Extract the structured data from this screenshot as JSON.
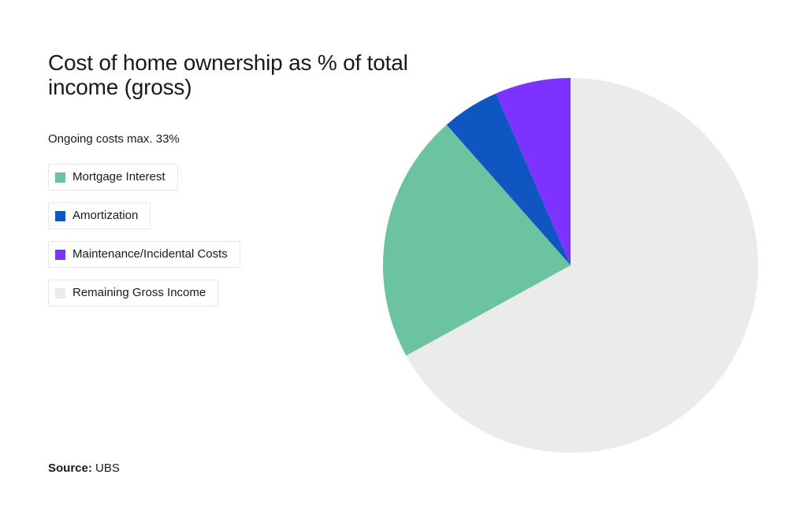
{
  "chart_data": {
    "type": "pie",
    "title": "Cost of home ownership as % of total income (gross)",
    "subtitle": "Ongoing costs max. 33%",
    "slices": [
      {
        "label": "Maintenance/Incidental Costs",
        "value": 6.5,
        "color": "#7e32ff"
      },
      {
        "label": "Amortization",
        "value": 5.0,
        "color": "#0f56c3"
      },
      {
        "label": "Mortgage Interest",
        "value": 21.5,
        "color": "#6bc49f"
      },
      {
        "label": "Remaining Gross Income",
        "value": 67.0,
        "color": "#ebebeb"
      }
    ],
    "legend_order": [
      "Mortgage Interest",
      "Amortization",
      "Maintenance/Incidental Costs",
      "Remaining Gross Income"
    ],
    "legend_placement": "left",
    "start": "12 o'clock, counterclockwise"
  },
  "source": {
    "label": "Source:",
    "value": "UBS"
  }
}
